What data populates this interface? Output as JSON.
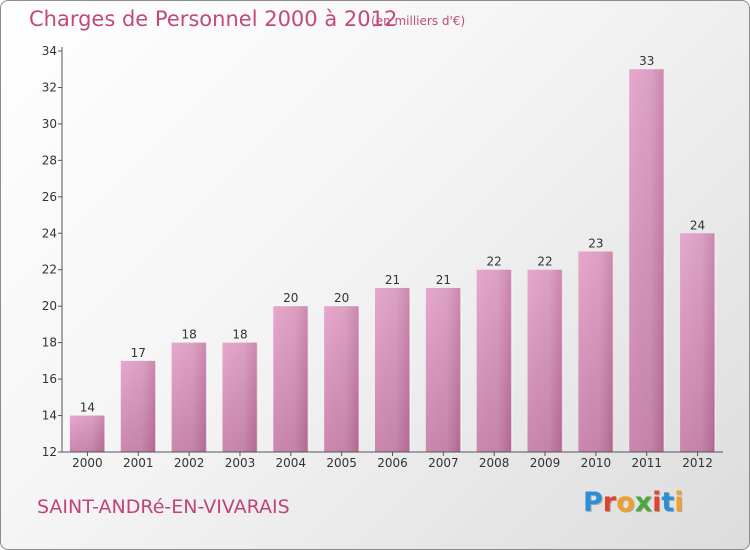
{
  "header": {
    "title": "Charges de Personnel 2000 à 2012",
    "subtitle": "(en milliers d'€)"
  },
  "footer": {
    "town": "SAINT-ANDRé-EN-VIVARAIS",
    "logo": {
      "letters": [
        "P",
        "r",
        "o",
        "x",
        "i",
        "t",
        "i"
      ],
      "colors": [
        "#2a8fd6",
        "#e0442c",
        "#f0a02a",
        "#4aa83a",
        "#e0442c",
        "#2a8fd6",
        "#f0a02a"
      ]
    }
  },
  "chart_data": {
    "type": "bar",
    "categories": [
      "2000",
      "2001",
      "2002",
      "2003",
      "2004",
      "2005",
      "2006",
      "2007",
      "2008",
      "2009",
      "2010",
      "2011",
      "2012"
    ],
    "values": [
      14,
      17,
      18,
      18,
      20,
      20,
      21,
      21,
      22,
      22,
      23,
      33,
      24
    ],
    "data_labels": [
      "14",
      "17",
      "18",
      "18",
      "20",
      "20",
      "21",
      "21",
      "22",
      "22",
      "23",
      "33",
      "24"
    ],
    "ylim": [
      12,
      34
    ],
    "yticks": [
      12,
      14,
      16,
      18,
      20,
      22,
      24,
      26,
      28,
      30,
      32,
      34
    ],
    "bar_color": "#d98cb6",
    "label_color": "#333333",
    "grid": false
  }
}
